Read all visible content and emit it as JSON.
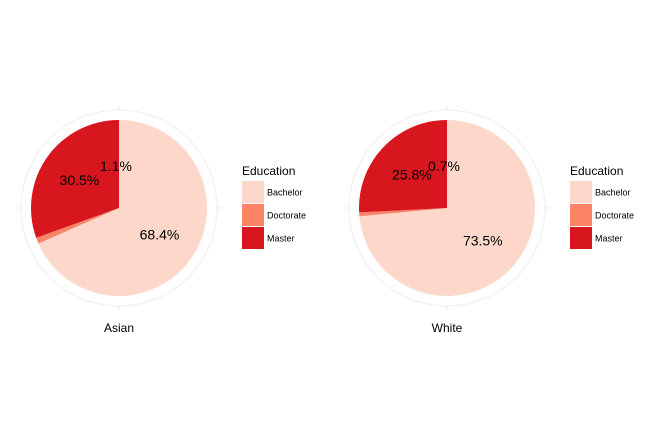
{
  "chart_data": [
    {
      "type": "pie",
      "xlabel": "Asian",
      "legend_title": "Education",
      "legend_placement": "right",
      "categories": [
        "Bachelor",
        "Doctorate",
        "Master"
      ],
      "values": [
        68.4,
        1.1,
        30.5
      ],
      "labels": [
        "68.4%",
        "1.1%",
        "30.5%"
      ],
      "colors": [
        "#fdd8ca",
        "#fb8366",
        "#d7161d"
      ]
    },
    {
      "type": "pie",
      "xlabel": "White",
      "legend_title": "Education",
      "legend_placement": "right",
      "categories": [
        "Bachelor",
        "Doctorate",
        "Master"
      ],
      "values": [
        73.5,
        0.7,
        25.8
      ],
      "labels": [
        "73.5%",
        "0.7%",
        "25.8%"
      ],
      "colors": [
        "#fdd8ca",
        "#fb8366",
        "#d7161d"
      ]
    }
  ]
}
